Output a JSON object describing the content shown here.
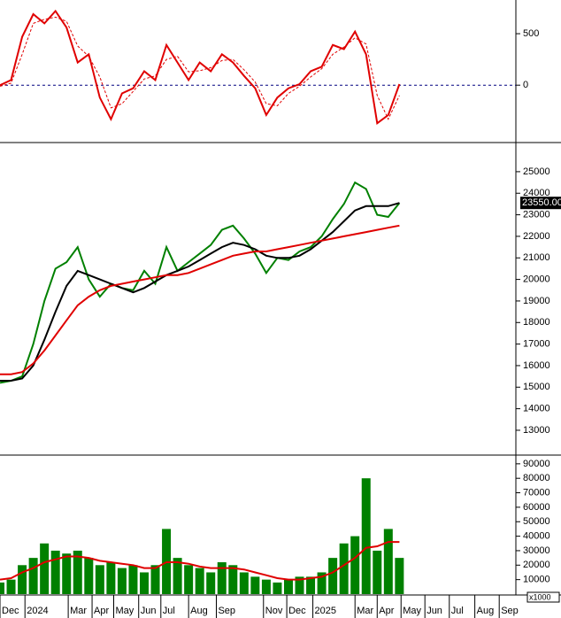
{
  "chart_data": [
    {
      "type": "line",
      "xlim": [
        0,
        93
      ],
      "ylim": [
        -540,
        810
      ],
      "yticks": [
        0,
        500
      ],
      "reference_line": 0,
      "x": [
        0,
        2,
        4,
        6,
        8,
        10,
        12,
        14,
        16,
        18,
        20,
        22,
        24,
        26,
        28,
        30,
        32,
        34,
        36,
        38,
        40,
        42,
        44,
        46,
        48,
        50,
        52,
        54,
        56,
        58,
        60,
        62,
        64,
        66,
        68,
        70,
        72
      ],
      "series": [
        {
          "color": "#e00000",
          "values": [
            0,
            50,
            470,
            690,
            600,
            720,
            560,
            220,
            300,
            -120,
            -330,
            -80,
            -30,
            135,
            50,
            390,
            220,
            50,
            220,
            135,
            300,
            220,
            90,
            -30,
            -290,
            -120,
            -30,
            10,
            135,
            180,
            390,
            350,
            520,
            300,
            -370,
            -290,
            10
          ]
        },
        {
          "color": "#e00000",
          "dashed": true,
          "values": [
            -10,
            20,
            300,
            600,
            640,
            660,
            620,
            380,
            280,
            80,
            -220,
            -180,
            -60,
            60,
            90,
            250,
            280,
            130,
            140,
            170,
            240,
            250,
            150,
            30,
            -180,
            -200,
            -80,
            -10,
            80,
            160,
            300,
            370,
            460,
            400,
            -100,
            -330,
            -100
          ]
        }
      ]
    },
    {
      "type": "line",
      "xlim": [
        0,
        93
      ],
      "ylim": [
        11930,
        26270
      ],
      "yticks": [
        13000,
        14000,
        15000,
        16000,
        17000,
        18000,
        19000,
        20000,
        21000,
        22000,
        23000,
        24000,
        25000
      ],
      "x": [
        0,
        2,
        4,
        6,
        8,
        10,
        12,
        14,
        16,
        18,
        20,
        22,
        24,
        26,
        28,
        30,
        32,
        34,
        36,
        38,
        40,
        42,
        44,
        46,
        48,
        50,
        52,
        54,
        56,
        58,
        60,
        62,
        64,
        66,
        68,
        70,
        72
      ],
      "last_label": "23550.00",
      "series": [
        {
          "color": "#008000",
          "values": [
            15200,
            15300,
            15500,
            17000,
            19000,
            20500,
            20800,
            21500,
            20000,
            19200,
            19800,
            19600,
            19500,
            20400,
            19800,
            21500,
            20400,
            20800,
            21200,
            21600,
            22300,
            22500,
            21900,
            21200,
            20300,
            21000,
            20900,
            21300,
            21500,
            22000,
            22800,
            23500,
            24500,
            24200,
            23000,
            22900,
            23550
          ]
        },
        {
          "color": "#000000",
          "values": [
            15300,
            15300,
            15400,
            16000,
            17200,
            18500,
            19700,
            20400,
            20200,
            20000,
            19800,
            19600,
            19400,
            19600,
            19900,
            20200,
            20400,
            20600,
            20900,
            21200,
            21500,
            21700,
            21600,
            21400,
            21100,
            21000,
            21000,
            21100,
            21400,
            21800,
            22200,
            22700,
            23200,
            23400,
            23400,
            23400,
            23550
          ]
        },
        {
          "color": "#e00000",
          "values": [
            15600,
            15600,
            15700,
            16100,
            16700,
            17400,
            18100,
            18800,
            19200,
            19500,
            19700,
            19800,
            19900,
            20000,
            20100,
            20200,
            20200,
            20300,
            20500,
            20700,
            20900,
            21100,
            21200,
            21300,
            21300,
            21400,
            21500,
            21600,
            21700,
            21800,
            21900,
            22000,
            22100,
            22200,
            22300,
            22400,
            22500
          ]
        }
      ]
    },
    {
      "type": "bar",
      "xlim": [
        0,
        93
      ],
      "ylim": [
        0,
        94800
      ],
      "yticks": [
        10000,
        20000,
        30000,
        40000,
        50000,
        60000,
        70000,
        80000,
        90000
      ],
      "unit_label": "x1000",
      "x": [
        0,
        2,
        4,
        6,
        8,
        10,
        12,
        14,
        16,
        18,
        20,
        22,
        24,
        26,
        28,
        30,
        32,
        34,
        36,
        38,
        40,
        42,
        44,
        46,
        48,
        50,
        52,
        54,
        56,
        58,
        60,
        62,
        64,
        66,
        68,
        70,
        72
      ],
      "xticks": [
        {
          "value": 0,
          "label": "Dec"
        },
        {
          "value": 4.5,
          "label": "2024"
        },
        {
          "value": 12.3,
          "label": "Mar"
        },
        {
          "value": 16.6,
          "label": "Apr"
        },
        {
          "value": 20.5,
          "label": "May"
        },
        {
          "value": 25,
          "label": "Jun"
        },
        {
          "value": 29,
          "label": "Jul"
        },
        {
          "value": 34,
          "label": "Aug"
        },
        {
          "value": 39,
          "label": "Sep"
        },
        {
          "value": 47.5,
          "label": "Nov"
        },
        {
          "value": 51.7,
          "label": "Dec"
        },
        {
          "value": 56.4,
          "label": "2025"
        },
        {
          "value": 64,
          "label": "Mar"
        },
        {
          "value": 68,
          "label": "Apr"
        },
        {
          "value": 72.3,
          "label": "May"
        },
        {
          "value": 76.6,
          "label": "Jun"
        },
        {
          "value": 81,
          "label": "Jul"
        },
        {
          "value": 85.6,
          "label": "Aug"
        },
        {
          "value": 90,
          "label": "Sep"
        }
      ],
      "series": [
        {
          "color": "#008000",
          "type": "bar",
          "values": [
            8000,
            10000,
            20000,
            25000,
            35000,
            30000,
            28000,
            30000,
            25000,
            20000,
            22000,
            18000,
            20000,
            15000,
            20000,
            45000,
            25000,
            20000,
            18000,
            15000,
            22000,
            20000,
            15000,
            12000,
            10000,
            8000,
            10000,
            12000,
            12000,
            15000,
            25000,
            35000,
            40000,
            80000,
            30000,
            45000,
            25000
          ]
        },
        {
          "color": "#e00000",
          "type": "line",
          "values": [
            10000,
            11000,
            15000,
            18000,
            22000,
            24000,
            26000,
            26000,
            25000,
            23000,
            22000,
            21000,
            20000,
            18000,
            18000,
            22000,
            22000,
            21000,
            19000,
            18000,
            18000,
            18000,
            17000,
            15000,
            13000,
            11000,
            10000,
            10000,
            11000,
            12000,
            15000,
            20000,
            25000,
            32000,
            33000,
            36000,
            36000
          ]
        }
      ]
    }
  ]
}
